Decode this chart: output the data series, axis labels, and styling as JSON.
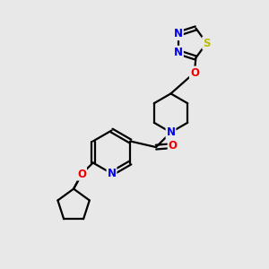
{
  "background_color": "#e8e8e8",
  "atom_colors": {
    "C": "#000000",
    "N": "#0000ee",
    "O": "#ee0000",
    "S": "#bbbb00",
    "H": "#000000"
  },
  "bond_color": "#000000",
  "bond_width": 1.6,
  "font_size_atom": 8.5
}
